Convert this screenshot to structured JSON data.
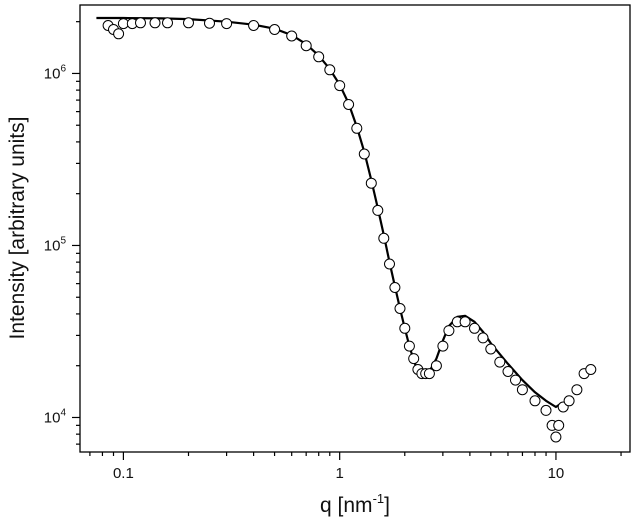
{
  "chart_data": {
    "type": "scatter",
    "title": "",
    "xlabel": "q [nm⁻¹]",
    "xlabel_base": "q [nm",
    "xlabel_sup": "-1",
    "xlabel_close": "]",
    "ylabel": "Intensity [arbitrary units]",
    "x_scale": "log",
    "y_scale": "log",
    "xlim": [
      0.063,
      22
    ],
    "ylim": [
      6300,
      2500000
    ],
    "grid": false,
    "legend": "none",
    "x_ticks": [
      {
        "value": 0.1,
        "label": "0.1"
      },
      {
        "value": 1,
        "label": "1"
      },
      {
        "value": 10,
        "label": "10"
      }
    ],
    "y_ticks": [
      {
        "value": 10000,
        "label_base": "10",
        "label_exp": "4"
      },
      {
        "value": 100000,
        "label_base": "10",
        "label_exp": "5"
      },
      {
        "value": 1000000,
        "label_base": "10",
        "label_exp": "6"
      }
    ],
    "series": [
      {
        "kind": "markers",
        "marker": "open-circle",
        "color": "#000000",
        "x": [
          0.085,
          0.09,
          0.095,
          0.1,
          0.11,
          0.12,
          0.14,
          0.16,
          0.2,
          0.25,
          0.3,
          0.4,
          0.5,
          0.6,
          0.7,
          0.8,
          0.9,
          1.0,
          1.1,
          1.2,
          1.3,
          1.4,
          1.5,
          1.6,
          1.7,
          1.8,
          1.9,
          2.0,
          2.1,
          2.2,
          2.3,
          2.4,
          2.5,
          2.6,
          2.8,
          3.0,
          3.2,
          3.5,
          3.8,
          4.2,
          4.6,
          5.0,
          5.5,
          6.0,
          6.5,
          7.0,
          8.0,
          9.0,
          9.6,
          10.0,
          10.3,
          10.8,
          11.5,
          12.5,
          13.5,
          14.5
        ],
        "y": [
          1900000,
          1800000,
          1700000,
          1950000,
          1950000,
          1970000,
          1970000,
          1970000,
          1970000,
          1960000,
          1950000,
          1900000,
          1800000,
          1650000,
          1450000,
          1250000,
          1050000,
          850000,
          660000,
          480000,
          340000,
          230000,
          160000,
          110000,
          78000,
          57000,
          43000,
          33000,
          26000,
          22000,
          19000,
          18000,
          18000,
          18000,
          20000,
          26000,
          32000,
          36000,
          36000,
          33000,
          29000,
          25000,
          21000,
          18500,
          16500,
          14500,
          12500,
          11000,
          9000,
          7700,
          9000,
          11500,
          12500,
          14500,
          18000,
          19000
        ]
      },
      {
        "kind": "line",
        "color": "#000000",
        "x": [
          0.075,
          0.1,
          0.15,
          0.2,
          0.3,
          0.4,
          0.5,
          0.6,
          0.7,
          0.8,
          0.9,
          1.0,
          1.1,
          1.2,
          1.3,
          1.4,
          1.5,
          1.6,
          1.7,
          1.8,
          1.9,
          2.0,
          2.1,
          2.2,
          2.3,
          2.4,
          2.5,
          2.6,
          2.8,
          3.0,
          3.2,
          3.5,
          3.8,
          4.2,
          4.6,
          5.0,
          6.0,
          7.0,
          8.0,
          9.0,
          10.0,
          10.5
        ],
        "y": [
          2100000,
          2100000,
          2090000,
          2070000,
          2000000,
          1920000,
          1820000,
          1670000,
          1480000,
          1270000,
          1060000,
          860000,
          670000,
          490000,
          350000,
          240000,
          165000,
          115000,
          80000,
          58000,
          43000,
          33000,
          26000,
          21500,
          18500,
          17500,
          17500,
          18500,
          22000,
          28000,
          34000,
          38500,
          39000,
          36000,
          31500,
          27000,
          20500,
          16500,
          14000,
          12500,
          11500,
          12000
        ]
      }
    ]
  }
}
